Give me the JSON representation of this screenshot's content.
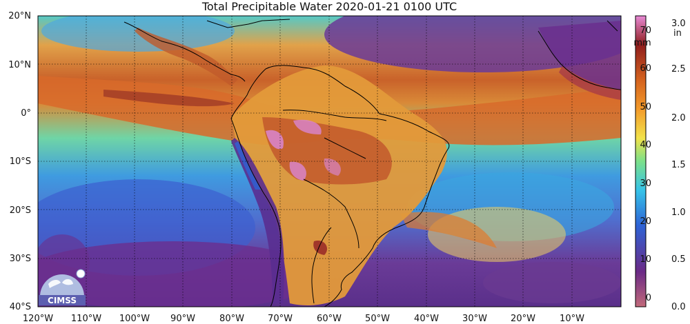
{
  "title": "Total Precipitable Water  2020-01-21 0100 UTC",
  "lat_labels": [
    "20°N",
    "10°N",
    "0°",
    "10°S",
    "20°S",
    "30°S",
    "40°S"
  ],
  "lon_labels": [
    "120°W",
    "110°W",
    "100°W",
    "90°W",
    "80°W",
    "70°W",
    "60°W",
    "50°W",
    "40°W",
    "30°W",
    "20°W",
    "10°W"
  ],
  "colorbar": {
    "mm_unit": "mm",
    "in_unit": "in",
    "mm_ticks": [
      "70",
      "60",
      "50",
      "40",
      "30",
      "20",
      "10",
      "0"
    ],
    "in_ticks": [
      "3.0",
      "2.5",
      "2.0",
      "1.5",
      "1.0",
      "0.5",
      "0.0"
    ],
    "colors": [
      "#c26a7a",
      "#6b2a86",
      "#2d63d6",
      "#36c3e8",
      "#7be08a",
      "#f2e24a",
      "#f39a2a",
      "#d4621e",
      "#8f1d1d",
      "#e88ad6"
    ]
  },
  "logo_text": "CIMSS"
}
